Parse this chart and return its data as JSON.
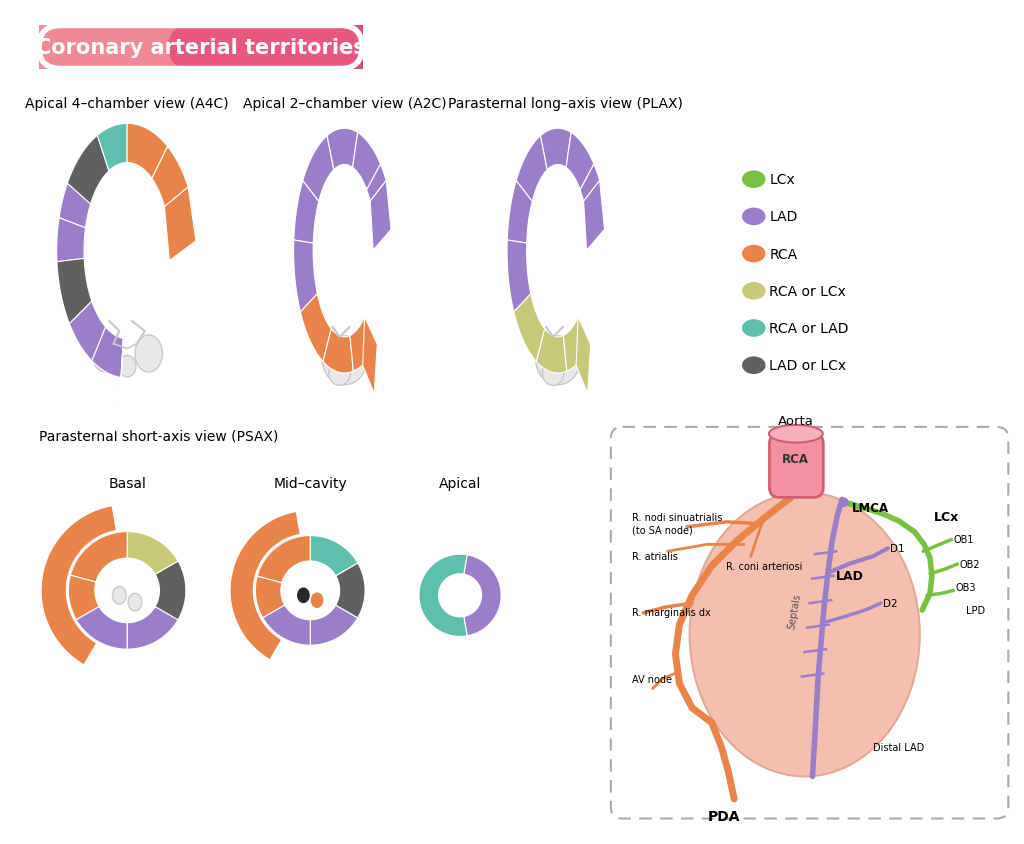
{
  "title": "Coronary arterial territories",
  "colors": {
    "LCx": "#7ac143",
    "LAD": "#9b7ec8",
    "RCA": "#e8834a",
    "RCA_or_LCx": "#c8c87a",
    "RCA_or_LAD": "#5fbfad",
    "LAD_or_LCx": "#606060",
    "heart_gray": "#c8c8c8",
    "heart_light": "#e8e8e8",
    "aorta_fill": "#f08090",
    "heart_body": "#f5c0b0"
  },
  "legend": [
    {
      "label": "LCx",
      "color": "#7ac143"
    },
    {
      "label": "LAD",
      "color": "#9b7ec8"
    },
    {
      "label": "RCA",
      "color": "#e8834a"
    },
    {
      "label": "RCA or LCx",
      "color": "#c8c87a"
    },
    {
      "label": "RCA or LAD",
      "color": "#5fbfad"
    },
    {
      "label": "LAD or LCx",
      "color": "#606060"
    }
  ],
  "bg": "#ffffff"
}
